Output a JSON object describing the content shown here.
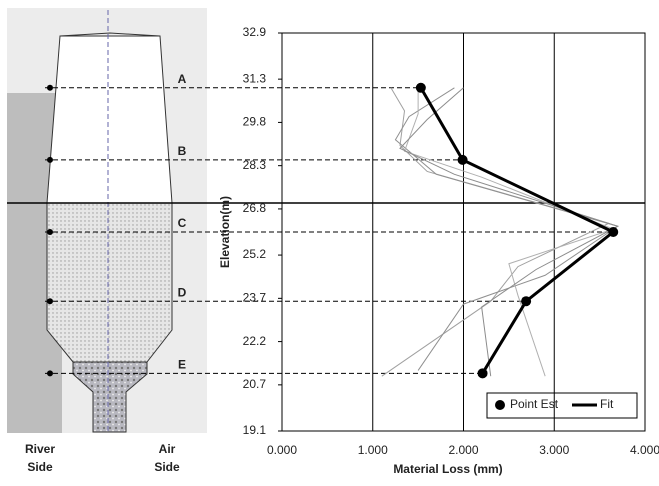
{
  "chart_data": {
    "type": "scatter-line",
    "x_label": "Material Loss (mm)",
    "y_label": "Elevation(m)",
    "xlim": [
      0,
      4
    ],
    "ylim": [
      19.1,
      32.9
    ],
    "xticks": [
      {
        "value": 0,
        "label": "0.000"
      },
      {
        "value": 1,
        "label": "1.000"
      },
      {
        "value": 2,
        "label": "2.000"
      },
      {
        "value": 3,
        "label": "3.000"
      },
      {
        "value": 4,
        "label": "4.000"
      }
    ],
    "yticks": [
      32.9,
      31.3,
      29.8,
      28.3,
      26.8,
      25.2,
      23.7,
      22.2,
      20.7,
      19.1
    ],
    "grid": "x",
    "legend": "bottom-right",
    "section_labels": [
      "A",
      "B",
      "C",
      "D",
      "E"
    ],
    "side_labels": [
      "River Side",
      "Air Side"
    ],
    "series": [
      {
        "color": "#a0a0a0",
        "x": [
          1.2,
          1.35,
          1.3,
          1.6,
          3.6,
          2.6,
          2.3,
          1.1
        ],
        "y": [
          31.0,
          30.2,
          29.0,
          28.1,
          26.3,
          24.8,
          23.6,
          21.0
        ]
      },
      {
        "color": "#909090",
        "x": [
          1.9,
          1.4,
          1.25,
          1.7,
          3.7,
          2.9,
          2.0,
          1.5
        ],
        "y": [
          31.0,
          30.0,
          29.2,
          28.0,
          26.2,
          24.5,
          23.5,
          21.2
        ]
      },
      {
        "color": "#b0b0b0",
        "x": [
          1.5,
          1.5,
          1.35,
          2.2,
          3.65,
          2.5,
          2.6,
          2.9
        ],
        "y": [
          31.0,
          30.1,
          28.8,
          27.9,
          26.1,
          24.9,
          23.8,
          21.0
        ]
      },
      {
        "color": "#8c8c8c",
        "x": [
          2.0,
          1.6,
          1.3,
          1.9,
          3.7,
          2.8,
          2.2,
          2.3
        ],
        "y": [
          31.0,
          29.9,
          28.9,
          28.0,
          26.2,
          24.7,
          23.4,
          21.0
        ]
      },
      {
        "name": "Fit",
        "color": "#000000",
        "x": [
          1.53,
          1.99,
          3.65,
          2.69,
          2.21
        ],
        "y": [
          31.0,
          28.5,
          26.0,
          23.6,
          21.1
        ]
      },
      {
        "name": "Point Est",
        "color": "#000000",
        "x": [
          1.53,
          1.99,
          3.65,
          2.69,
          2.21
        ],
        "y": [
          31.0,
          28.5,
          26.0,
          23.6,
          21.1
        ]
      }
    ]
  }
}
